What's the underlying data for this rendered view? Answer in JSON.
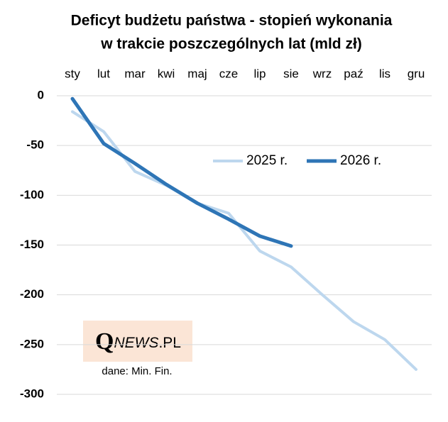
{
  "chart_data": {
    "type": "line",
    "title": [
      "Deficyt budżetu państwa - stopień wykonania",
      "w trakcie poszczególnych lat (mld zł)"
    ],
    "categories": [
      "sty",
      "lut",
      "mar",
      "kwi",
      "maj",
      "cze",
      "lip",
      "sie",
      "wrz",
      "paź",
      "lis",
      "gru"
    ],
    "series": [
      {
        "name": "2025 r.",
        "color": "#bdd7ee",
        "values": [
          -16,
          -36,
          -76,
          -90,
          -108,
          -118,
          -156,
          -172,
          -200,
          -227,
          -245,
          -275
        ]
      },
      {
        "name": "2026 r.",
        "color": "#2e75b6",
        "values": [
          -3,
          -48,
          -68,
          -89,
          -108,
          -124,
          -141,
          -151,
          null,
          null,
          null,
          null
        ]
      }
    ],
    "ylim": [
      -300,
      0
    ],
    "yticks": [
      0,
      -50,
      -100,
      -150,
      -200,
      -250,
      -300
    ],
    "grid": true,
    "watermark": {
      "logo_q": "Q",
      "logo_news": "NEWS",
      "logo_pl": ".PL",
      "source": "dane: Min. Fin."
    }
  }
}
